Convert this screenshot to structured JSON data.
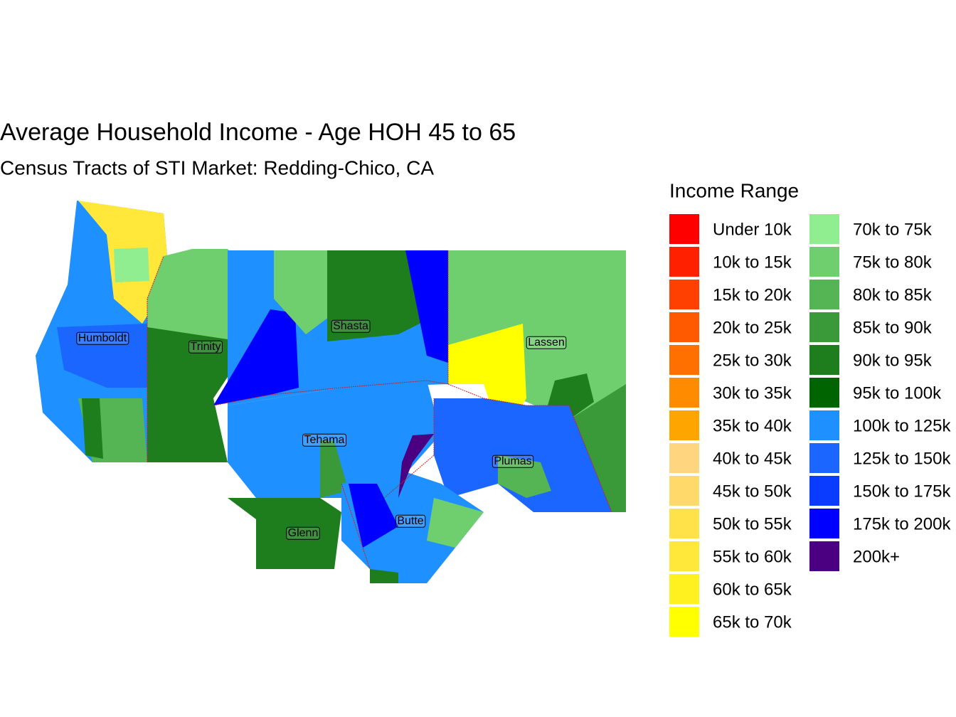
{
  "title": "Average Household Income - Age HOH 45 to 65",
  "subtitle": "Census Tracts of STI Market: Redding-Chico, CA",
  "legend": {
    "title": "Income Range",
    "items": [
      {
        "label": "Under 10k",
        "color": "#ff0000"
      },
      {
        "label": "10k to 15k",
        "color": "#ff2000"
      },
      {
        "label": "15k to 20k",
        "color": "#ff4000"
      },
      {
        "label": "20k to 25k",
        "color": "#ff5a00"
      },
      {
        "label": "25k to 30k",
        "color": "#ff7000"
      },
      {
        "label": "30k to 35k",
        "color": "#ff8c00"
      },
      {
        "label": "35k to 40k",
        "color": "#ffa500"
      },
      {
        "label": "40k to 45k",
        "color": "#ffd580"
      },
      {
        "label": "45k to 50k",
        "color": "#ffda6a"
      },
      {
        "label": "50k to 55k",
        "color": "#ffe14a"
      },
      {
        "label": "55k to 60k",
        "color": "#ffe83a"
      },
      {
        "label": "60k to 65k",
        "color": "#fff020"
      },
      {
        "label": "65k to 70k",
        "color": "#ffff00"
      },
      {
        "label": "70k to 75k",
        "color": "#90ee90"
      },
      {
        "label": "75k to 80k",
        "color": "#6fcf6f"
      },
      {
        "label": "80k to 85k",
        "color": "#55b555"
      },
      {
        "label": "85k to 90k",
        "color": "#3a9a3a"
      },
      {
        "label": "90k to 95k",
        "color": "#1e7e1e"
      },
      {
        "label": "95k to 100k",
        "color": "#006400"
      },
      {
        "label": "100k to 125k",
        "color": "#1e90ff"
      },
      {
        "label": "125k to 150k",
        "color": "#1a66ff"
      },
      {
        "label": "150k to 175k",
        "color": "#0a3cff"
      },
      {
        "label": "175k to 200k",
        "color": "#0000ff"
      },
      {
        "label": "200k+",
        "color": "#4b0082"
      }
    ]
  },
  "counties": [
    "Humboldt",
    "Trinity",
    "Shasta",
    "Lassen",
    "Tehama",
    "Plumas",
    "Glenn",
    "Butte"
  ]
}
